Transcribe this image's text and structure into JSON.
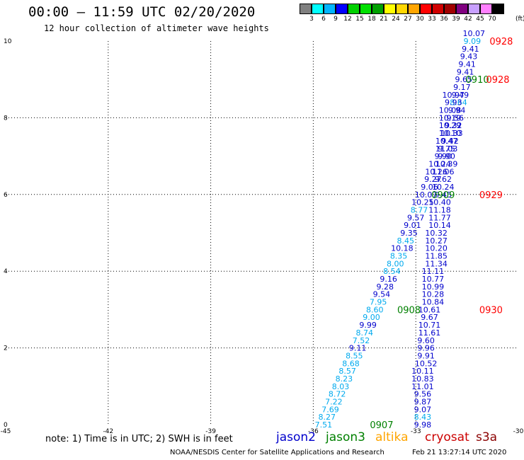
{
  "title": "00:00 – 11:59 UTC 02/20/2020",
  "subtitle": "12 hour collection of altimeter wave heights",
  "scale": {
    "labels": [
      "3",
      "6",
      "9",
      "12",
      "15",
      "18",
      "21",
      "24",
      "27",
      "30",
      "33",
      "36",
      "39",
      "42",
      "45",
      "70"
    ],
    "unit": "(ft)",
    "colors": [
      "#808080",
      "#00ffff",
      "#00b4ff",
      "#0000ff",
      "#00d000",
      "#00e000",
      "#00a000",
      "#ffff00",
      "#ffd700",
      "#ffa500",
      "#ff0000",
      "#d00000",
      "#a00000",
      "#800080",
      "#c8a0ff",
      "#ff80ff",
      "#000000"
    ]
  },
  "note": "note: 1) Time is in UTC; 2) SWH is in feet",
  "satellites": [
    {
      "name": "jason2",
      "color": "#0000cc"
    },
    {
      "name": "jason3",
      "color": "#008000"
    },
    {
      "name": "altika",
      "color": "#ffa500"
    },
    {
      "name": "cryosat",
      "color": "#cc0000"
    },
    {
      "name": "s3a",
      "color": "#8b0000"
    }
  ],
  "footer": {
    "credit": "NOAA/NESDIS Center for Satellite Applications and Research",
    "generated": "Feb 21 13:27:14 UTC 2020"
  },
  "chart_data": {
    "type": "scatter",
    "title": "00:00 – 11:59 UTC 02/20/2020",
    "xlim": [
      -45,
      -30
    ],
    "ylim": [
      0,
      10
    ],
    "x_ticks": [
      "-45",
      "-42",
      "-39",
      "-36",
      "-33",
      "-30"
    ],
    "y_ticks": [
      "0",
      "2",
      "4",
      "6",
      "8",
      "10"
    ],
    "grid": true,
    "colors": {
      "dark_blue": "#0000cc",
      "light_blue": "#00aaee",
      "green": "#008000",
      "red": "#ff0000"
    },
    "series": [
      {
        "track": "A",
        "points": [
          {
            "x": -35.7,
            "y": 0.0,
            "label": "7.51",
            "color": "light_blue"
          },
          {
            "x": -35.6,
            "y": 0.2,
            "label": "8.27",
            "color": "light_blue"
          },
          {
            "x": -35.5,
            "y": 0.4,
            "label": "7.69",
            "color": "light_blue"
          },
          {
            "x": -35.4,
            "y": 0.6,
            "label": "7.22",
            "color": "light_blue"
          },
          {
            "x": -35.3,
            "y": 0.8,
            "label": "8.72",
            "color": "light_blue"
          },
          {
            "x": -35.2,
            "y": 1.0,
            "label": "8.03",
            "color": "light_blue"
          },
          {
            "x": -35.1,
            "y": 1.2,
            "label": "8.23",
            "color": "light_blue"
          },
          {
            "x": -35.0,
            "y": 1.4,
            "label": "8.57",
            "color": "light_blue"
          },
          {
            "x": -34.9,
            "y": 1.6,
            "label": "8.68",
            "color": "light_blue"
          },
          {
            "x": -34.8,
            "y": 1.8,
            "label": "8.55",
            "color": "light_blue"
          },
          {
            "x": -34.7,
            "y": 2.0,
            "label": "9.11",
            "color": "dark_blue"
          },
          {
            "x": -34.6,
            "y": 2.2,
            "label": "7.52",
            "color": "light_blue"
          },
          {
            "x": -34.5,
            "y": 2.4,
            "label": "8.74",
            "color": "light_blue"
          },
          {
            "x": -34.4,
            "y": 2.6,
            "label": "9.99",
            "color": "dark_blue"
          },
          {
            "x": -34.3,
            "y": 2.8,
            "label": "9.00",
            "color": "light_blue"
          },
          {
            "x": -34.2,
            "y": 3.0,
            "label": "8.60",
            "color": "light_blue"
          },
          {
            "x": -34.1,
            "y": 3.2,
            "label": "7.95",
            "color": "light_blue"
          },
          {
            "x": -34.0,
            "y": 3.4,
            "label": "9.54",
            "color": "dark_blue"
          },
          {
            "x": -33.9,
            "y": 3.6,
            "label": "9.28",
            "color": "dark_blue"
          },
          {
            "x": -33.8,
            "y": 3.8,
            "label": "9.16",
            "color": "dark_blue"
          },
          {
            "x": -33.7,
            "y": 4.0,
            "label": "8.54",
            "color": "light_blue"
          },
          {
            "x": -33.6,
            "y": 4.2,
            "label": "8.00",
            "color": "light_blue"
          },
          {
            "x": -33.5,
            "y": 4.4,
            "label": "8.35",
            "color": "light_blue"
          },
          {
            "x": -33.4,
            "y": 4.6,
            "label": "10.18",
            "color": "dark_blue"
          },
          {
            "x": -33.3,
            "y": 4.8,
            "label": "8.45",
            "color": "light_blue"
          },
          {
            "x": -33.2,
            "y": 5.0,
            "label": "9.35",
            "color": "dark_blue"
          },
          {
            "x": -33.1,
            "y": 5.2,
            "label": "9.01",
            "color": "dark_blue"
          },
          {
            "x": -33.0,
            "y": 5.4,
            "label": "9.57",
            "color": "dark_blue"
          },
          {
            "x": -32.9,
            "y": 5.6,
            "label": "8.77",
            "color": "light_blue"
          },
          {
            "x": -32.8,
            "y": 5.8,
            "label": "10.25",
            "color": "dark_blue"
          },
          {
            "x": -32.7,
            "y": 6.0,
            "label": "10.07",
            "color": "dark_blue"
          },
          {
            "x": -32.6,
            "y": 6.2,
            "label": "9.06",
            "color": "dark_blue"
          },
          {
            "x": -32.5,
            "y": 6.4,
            "label": "9.27",
            "color": "dark_blue"
          },
          {
            "x": -32.4,
            "y": 6.6,
            "label": "10.26",
            "color": "dark_blue"
          },
          {
            "x": -32.3,
            "y": 6.8,
            "label": "10.24",
            "color": "dark_blue"
          },
          {
            "x": -32.2,
            "y": 7.0,
            "label": "9.90",
            "color": "dark_blue"
          },
          {
            "x": -32.1,
            "y": 7.2,
            "label": "9.75",
            "color": "dark_blue"
          },
          {
            "x": -32.0,
            "y": 7.4,
            "label": "9.42",
            "color": "dark_blue"
          },
          {
            "x": -31.95,
            "y": 7.6,
            "label": "10.33",
            "color": "dark_blue"
          },
          {
            "x": -31.9,
            "y": 7.8,
            "label": "9.32",
            "color": "dark_blue"
          },
          {
            "x": -31.85,
            "y": 8.0,
            "label": "9.56",
            "color": "dark_blue"
          },
          {
            "x": -31.8,
            "y": 8.2,
            "label": "9.94",
            "color": "dark_blue"
          },
          {
            "x": -31.75,
            "y": 8.4,
            "label": "8.64",
            "color": "light_blue"
          },
          {
            "x": -31.7,
            "y": 8.6,
            "label": "9.49",
            "color": "dark_blue"
          },
          {
            "x": -31.65,
            "y": 8.8,
            "label": "9.17",
            "color": "dark_blue"
          },
          {
            "x": -31.6,
            "y": 9.0,
            "label": "9.65",
            "color": "dark_blue"
          },
          {
            "x": -31.55,
            "y": 9.2,
            "label": "9.41",
            "color": "dark_blue"
          },
          {
            "x": -31.5,
            "y": 9.4,
            "label": "9.41",
            "color": "dark_blue"
          },
          {
            "x": -31.45,
            "y": 9.6,
            "label": "9.43",
            "color": "dark_blue"
          },
          {
            "x": -31.4,
            "y": 9.8,
            "label": "9.41",
            "color": "dark_blue"
          },
          {
            "x": -31.35,
            "y": 10.0,
            "label": "9.09",
            "color": "light_blue"
          },
          {
            "x": -31.3,
            "y": 10.2,
            "label": "10.07",
            "color": "dark_blue"
          }
        ]
      },
      {
        "track": "B",
        "points": [
          {
            "x": -32.8,
            "y": 0.0,
            "label": "9.98",
            "color": "dark_blue"
          },
          {
            "x": -32.8,
            "y": 0.2,
            "label": "8.43",
            "color": "light_blue"
          },
          {
            "x": -32.8,
            "y": 0.4,
            "label": "9.07",
            "color": "dark_blue"
          },
          {
            "x": -32.8,
            "y": 0.6,
            "label": "9.87",
            "color": "dark_blue"
          },
          {
            "x": -32.8,
            "y": 0.8,
            "label": "9.56",
            "color": "dark_blue"
          },
          {
            "x": -32.8,
            "y": 1.0,
            "label": "11.01",
            "color": "dark_blue"
          },
          {
            "x": -32.8,
            "y": 1.2,
            "label": "10.83",
            "color": "dark_blue"
          },
          {
            "x": -32.8,
            "y": 1.4,
            "label": "10.11",
            "color": "dark_blue"
          },
          {
            "x": -32.7,
            "y": 1.6,
            "label": "10.52",
            "color": "dark_blue"
          },
          {
            "x": -32.7,
            "y": 1.8,
            "label": "9.91",
            "color": "dark_blue"
          },
          {
            "x": -32.7,
            "y": 2.0,
            "label": "9.96",
            "color": "dark_blue"
          },
          {
            "x": -32.7,
            "y": 2.2,
            "label": "9.60",
            "color": "dark_blue"
          },
          {
            "x": -32.6,
            "y": 2.4,
            "label": "11.61",
            "color": "dark_blue"
          },
          {
            "x": -32.6,
            "y": 2.6,
            "label": "10.71",
            "color": "dark_blue"
          },
          {
            "x": -32.6,
            "y": 2.8,
            "label": "9.67",
            "color": "dark_blue"
          },
          {
            "x": -32.6,
            "y": 3.0,
            "label": "10.61",
            "color": "dark_blue"
          },
          {
            "x": -32.5,
            "y": 3.2,
            "label": "10.84",
            "color": "dark_blue"
          },
          {
            "x": -32.5,
            "y": 3.4,
            "label": "10.28",
            "color": "dark_blue"
          },
          {
            "x": -32.5,
            "y": 3.6,
            "label": "10.99",
            "color": "dark_blue"
          },
          {
            "x": -32.5,
            "y": 3.8,
            "label": "10.77",
            "color": "dark_blue"
          },
          {
            "x": -32.5,
            "y": 4.0,
            "label": "11.11",
            "color": "dark_blue"
          },
          {
            "x": -32.4,
            "y": 4.2,
            "label": "11.34",
            "color": "dark_blue"
          },
          {
            "x": -32.4,
            "y": 4.4,
            "label": "11.85",
            "color": "dark_blue"
          },
          {
            "x": -32.4,
            "y": 4.6,
            "label": "10.20",
            "color": "dark_blue"
          },
          {
            "x": -32.4,
            "y": 4.8,
            "label": "10.27",
            "color": "dark_blue"
          },
          {
            "x": -32.4,
            "y": 5.0,
            "label": "10.32",
            "color": "dark_blue"
          },
          {
            "x": -32.3,
            "y": 5.2,
            "label": "10.14",
            "color": "dark_blue"
          },
          {
            "x": -32.3,
            "y": 5.4,
            "label": "11.77",
            "color": "dark_blue"
          },
          {
            "x": -32.3,
            "y": 5.6,
            "label": "11.18",
            "color": "dark_blue"
          },
          {
            "x": -32.3,
            "y": 5.8,
            "label": "10.40",
            "color": "dark_blue"
          },
          {
            "x": -32.2,
            "y": 6.0,
            "label": "9.45",
            "color": "dark_blue"
          },
          {
            "x": -32.2,
            "y": 6.2,
            "label": "10.24",
            "color": "dark_blue"
          },
          {
            "x": -32.2,
            "y": 6.4,
            "label": "9.62",
            "color": "dark_blue"
          },
          {
            "x": -32.2,
            "y": 6.6,
            "label": "11.06",
            "color": "dark_blue"
          },
          {
            "x": -32.1,
            "y": 6.8,
            "label": "10.39",
            "color": "dark_blue"
          },
          {
            "x": -32.1,
            "y": 7.0,
            "label": "9.90",
            "color": "dark_blue"
          },
          {
            "x": -32.1,
            "y": 7.2,
            "label": "11.03",
            "color": "dark_blue"
          },
          {
            "x": -32.1,
            "y": 7.4,
            "label": "10.47",
            "color": "dark_blue"
          },
          {
            "x": -32.0,
            "y": 7.6,
            "label": "10.10",
            "color": "dark_blue"
          },
          {
            "x": -32.0,
            "y": 7.8,
            "label": "10.29",
            "color": "dark_blue"
          },
          {
            "x": -32.0,
            "y": 8.0,
            "label": "10.19",
            "color": "dark_blue"
          },
          {
            "x": -32.0,
            "y": 8.2,
            "label": "10.08",
            "color": "dark_blue"
          },
          {
            "x": -31.9,
            "y": 8.4,
            "label": "9.93",
            "color": "dark_blue"
          },
          {
            "x": -31.9,
            "y": 8.6,
            "label": "10.97",
            "color": "dark_blue"
          }
        ]
      }
    ],
    "time_labels": [
      {
        "x": -34.0,
        "y": 0.0,
        "label": "0907",
        "color": "green"
      },
      {
        "x": -33.2,
        "y": 3.0,
        "label": "0908",
        "color": "green"
      },
      {
        "x": -32.2,
        "y": 6.0,
        "label": "0909",
        "color": "green"
      },
      {
        "x": -31.2,
        "y": 9.0,
        "label": "0910",
        "color": "green"
      },
      {
        "x": -30.8,
        "y": 3.0,
        "label": "0930",
        "color": "red"
      },
      {
        "x": -30.8,
        "y": 6.0,
        "label": "0929",
        "color": "red"
      },
      {
        "x": -30.6,
        "y": 9.0,
        "label": "0928",
        "color": "red"
      },
      {
        "x": -30.5,
        "y": 10.0,
        "label": "0928",
        "color": "red"
      }
    ]
  }
}
